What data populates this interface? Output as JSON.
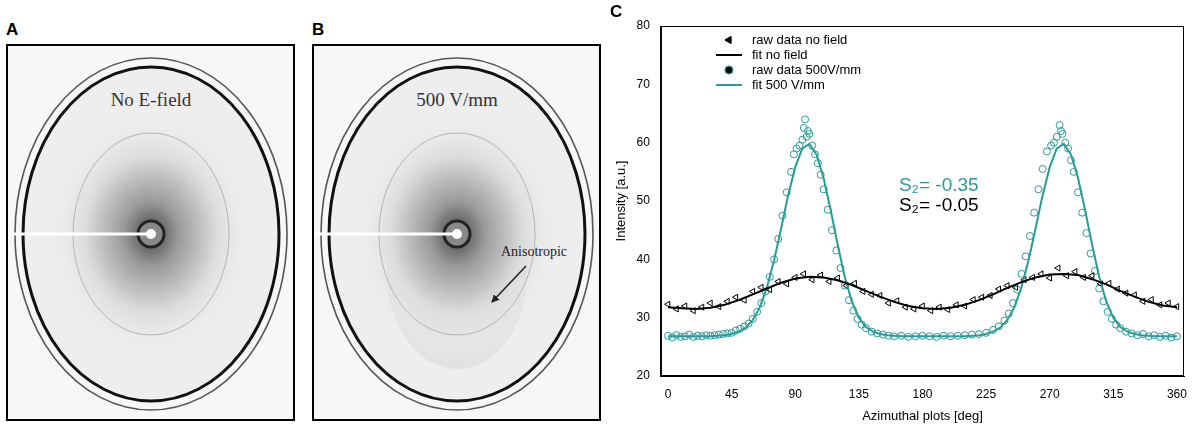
{
  "panels": [
    {
      "letter": "A",
      "label": "No E-field"
    },
    {
      "letter": "B",
      "label": "500 V/mm",
      "annotation": "Anisotropic"
    },
    {
      "letter": "C"
    }
  ],
  "chart_data": {
    "type": "scatter",
    "x_label": "Azimuthal plots [deg]",
    "y_label": "Intensity [a.u.]",
    "xlim": [
      -5,
      365
    ],
    "xticks": [
      0,
      45,
      90,
      135,
      180,
      225,
      270,
      315,
      360
    ],
    "ylim": [
      20,
      80
    ],
    "yticks": [
      20,
      30,
      40,
      50,
      60,
      70,
      80
    ],
    "grid": false,
    "legend": "upper left",
    "annotations": [
      {
        "text": "S₂= -0.35",
        "color": "#2a9a9a"
      },
      {
        "text": "S₂= -0.05",
        "color": "#000000"
      }
    ],
    "series": [
      {
        "name": "raw data no field",
        "type": "scatter",
        "color": "#000000",
        "marker": "triangle-left",
        "x": [
          0,
          6,
          12,
          18,
          24,
          30,
          36,
          42,
          48,
          54,
          60,
          66,
          72,
          78,
          84,
          90,
          96,
          102,
          108,
          114,
          120,
          126,
          132,
          138,
          144,
          150,
          156,
          162,
          168,
          174,
          180,
          186,
          192,
          198,
          204,
          210,
          216,
          222,
          228,
          234,
          240,
          246,
          252,
          258,
          264,
          270,
          276,
          282,
          288,
          294,
          300,
          306,
          312,
          318,
          324,
          330,
          336,
          342,
          348,
          354,
          360
        ],
        "values": [
          32.3,
          31.5,
          32.0,
          31.2,
          31.8,
          32.5,
          31.9,
          32.8,
          33.5,
          33.0,
          34.5,
          35.2,
          34.8,
          36.2,
          35.8,
          36.9,
          37.5,
          36.5,
          37.3,
          36.2,
          36.8,
          35.5,
          35.9,
          34.5,
          34.0,
          33.8,
          32.5,
          32.9,
          31.8,
          31.5,
          32.0,
          31.2,
          31.8,
          31.4,
          32.2,
          32.0,
          33.1,
          33.5,
          33.8,
          34.9,
          35.5,
          35.2,
          36.5,
          36.9,
          37.5,
          36.8,
          38.5,
          37.2,
          37.9,
          36.9,
          37.2,
          35.8,
          35.9,
          34.9,
          34.2,
          33.9,
          32.8,
          33.1,
          32.2,
          32.5,
          31.9
        ]
      },
      {
        "name": "fit no field",
        "type": "line",
        "color": "#000000",
        "line_style": "solid",
        "x": [
          0,
          10,
          20,
          30,
          40,
          50,
          60,
          70,
          80,
          90,
          100,
          110,
          120,
          130,
          140,
          150,
          160,
          170,
          180,
          190,
          200,
          210,
          220,
          230,
          240,
          250,
          260,
          270,
          280,
          290,
          300,
          310,
          320,
          330,
          340,
          350,
          360
        ],
        "values": [
          31.8,
          31.6,
          31.5,
          31.7,
          32.2,
          33.0,
          34.0,
          35.0,
          36.0,
          36.7,
          37.0,
          36.9,
          36.4,
          35.6,
          34.6,
          33.6,
          32.7,
          32.0,
          31.6,
          31.5,
          31.7,
          32.2,
          33.0,
          34.0,
          35.1,
          36.1,
          36.9,
          37.4,
          37.5,
          37.3,
          36.6,
          35.7,
          34.6,
          33.6,
          32.7,
          32.1,
          31.8
        ]
      },
      {
        "name": "raw data 500V/mm",
        "type": "scatter",
        "color": "#2a9a9a",
        "marker": "circle",
        "x": [
          0,
          3,
          6,
          9,
          12,
          15,
          18,
          21,
          24,
          27,
          30,
          33,
          36,
          39,
          42,
          45,
          48,
          51,
          54,
          57,
          60,
          63,
          66,
          69,
          72,
          75,
          78,
          81,
          84,
          87,
          89,
          91,
          93,
          95,
          96,
          97,
          98,
          99,
          100,
          102,
          104,
          106,
          108,
          110,
          113,
          116,
          119,
          122,
          125,
          128,
          131,
          134,
          137,
          140,
          144,
          148,
          152,
          156,
          160,
          165,
          170,
          175,
          180,
          185,
          190,
          195,
          200,
          205,
          210,
          215,
          220,
          225,
          230,
          234,
          238,
          241,
          244,
          247,
          250,
          253,
          256,
          259,
          262,
          265,
          268,
          271,
          273,
          275,
          277,
          278,
          279,
          281,
          283,
          285,
          287,
          290,
          293,
          296,
          299,
          302,
          305,
          308,
          311,
          314,
          317,
          320,
          324,
          328,
          332,
          336,
          340,
          344,
          348,
          352,
          356,
          360
        ],
        "values": [
          26.9,
          26.6,
          27.0,
          26.7,
          26.8,
          27.1,
          26.7,
          26.9,
          26.8,
          27.0,
          26.9,
          27.0,
          27.1,
          27.2,
          27.3,
          27.4,
          27.8,
          28.1,
          28.5,
          29.0,
          29.8,
          31.0,
          32.5,
          34.5,
          37.0,
          40.0,
          43.5,
          47.5,
          51.5,
          55.0,
          58.0,
          59.0,
          59.5,
          60.5,
          62.5,
          64.0,
          61.0,
          62.0,
          61.5,
          59.5,
          58.0,
          56.5,
          54.5,
          52.0,
          48.5,
          45.0,
          41.5,
          38.5,
          35.5,
          33.0,
          31.2,
          29.8,
          28.8,
          28.2,
          27.6,
          27.3,
          27.1,
          26.9,
          26.8,
          26.9,
          26.7,
          26.8,
          26.9,
          26.8,
          26.7,
          26.9,
          26.8,
          26.9,
          27.0,
          27.1,
          27.2,
          27.4,
          27.9,
          28.5,
          29.5,
          30.7,
          32.5,
          34.8,
          37.5,
          40.5,
          44.0,
          48.0,
          52.0,
          55.5,
          58.5,
          59.5,
          60.0,
          61.0,
          63.0,
          62.0,
          61.5,
          60.0,
          59.0,
          57.0,
          55.0,
          51.5,
          48.0,
          44.5,
          41.0,
          38.0,
          35.0,
          32.8,
          31.0,
          29.8,
          28.8,
          28.2,
          27.6,
          27.3,
          27.0,
          27.2,
          26.8,
          27.0,
          26.7,
          26.9,
          26.6,
          26.8
        ]
      },
      {
        "name": "fit 500 V/mm",
        "type": "line",
        "color": "#2a9a9a",
        "line_style": "solid",
        "x": [
          0,
          5,
          10,
          15,
          20,
          25,
          30,
          35,
          40,
          45,
          50,
          55,
          60,
          65,
          70,
          75,
          80,
          85,
          90,
          95,
          100,
          105,
          110,
          115,
          120,
          125,
          130,
          135,
          140,
          145,
          150,
          155,
          160,
          165,
          170,
          175,
          180,
          185,
          190,
          195,
          200,
          205,
          210,
          215,
          220,
          225,
          230,
          235,
          240,
          245,
          250,
          255,
          260,
          265,
          270,
          275,
          280,
          285,
          290,
          295,
          300,
          305,
          310,
          315,
          320,
          325,
          330,
          335,
          340,
          345,
          350,
          355,
          360
        ],
        "values": [
          26.8,
          26.8,
          26.8,
          26.8,
          26.8,
          26.8,
          26.8,
          26.9,
          27.0,
          27.2,
          27.6,
          28.3,
          29.6,
          31.8,
          35.2,
          39.8,
          45.3,
          51.0,
          55.8,
          59.0,
          59.8,
          58.0,
          54.0,
          48.5,
          42.5,
          37.0,
          32.8,
          30.0,
          28.4,
          27.6,
          27.2,
          27.0,
          26.9,
          26.8,
          26.8,
          26.8,
          26.8,
          26.8,
          26.8,
          26.8,
          26.8,
          26.8,
          26.8,
          26.9,
          27.0,
          27.2,
          27.6,
          28.3,
          29.6,
          31.8,
          35.2,
          39.8,
          45.3,
          51.0,
          55.8,
          59.0,
          59.8,
          58.0,
          54.0,
          48.5,
          42.5,
          37.0,
          32.8,
          30.0,
          28.4,
          27.6,
          27.2,
          27.0,
          26.9,
          26.8,
          26.8,
          26.8,
          26.8
        ]
      }
    ]
  }
}
